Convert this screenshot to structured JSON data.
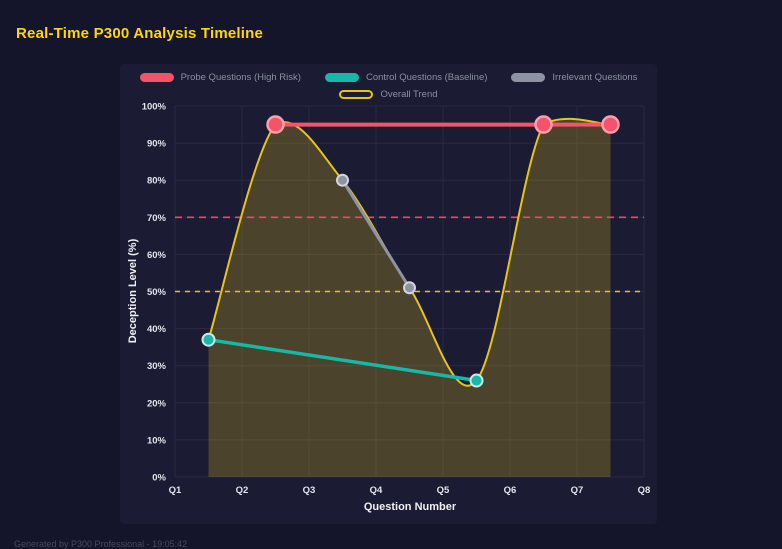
{
  "page": {
    "title": "Real-Time P300 Analysis Timeline",
    "footer": "Generated by P300 Professional - 19:05:42"
  },
  "chart_data": {
    "type": "line",
    "title": "Real-Time P300 Analysis Timeline",
    "xlabel": "Question Number",
    "ylabel": "Deception Level (%)",
    "xlim": [
      1,
      8
    ],
    "ylim": [
      0,
      100
    ],
    "x_tick_labels": [
      "Q1",
      "Q2",
      "Q3",
      "Q4",
      "Q5",
      "Q6",
      "Q7",
      "Q8"
    ],
    "y_tick_step": 10,
    "y_tick_suffix": "%",
    "grid": true,
    "legend_position": "top",
    "colors": {
      "background": "#14142a",
      "panel": "#1b1b33",
      "grid": "#2a2a45",
      "title": "#ffd60a",
      "axis_text": "#eef0f6",
      "legend_text": "#8b90a3",
      "area_fill": "#e7c41a",
      "area_opacity": 0.24
    },
    "series": [
      {
        "name": "Probe Questions (High Risk)",
        "color": "#f4536a",
        "point_ring": "#ff9fae",
        "x": [
          2.5,
          6.5,
          7.5
        ],
        "y": [
          95,
          95,
          95
        ],
        "shape": "line",
        "width": 4,
        "point_radius": 8,
        "point_stroke": 2.5,
        "legend_row": 1,
        "swatch": "fill"
      },
      {
        "name": "Control Questions (Baseline)",
        "color": "#16b8a8",
        "point_ring": "#c6ebe6",
        "x": [
          1.5,
          5.5
        ],
        "y": [
          37,
          26
        ],
        "shape": "line",
        "width": 3.5,
        "point_radius": 6,
        "point_stroke": 2,
        "legend_row": 1,
        "swatch": "fill"
      },
      {
        "name": "Irrelevant Questions",
        "color": "#8e93a3",
        "point_ring": "#d4d6de",
        "x": [
          3.5,
          4.5
        ],
        "y": [
          80,
          51
        ],
        "shape": "line",
        "width": 3,
        "point_radius": 5.5,
        "point_stroke": 2,
        "legend_row": 1,
        "swatch": "fill"
      },
      {
        "name": "Overall Trend",
        "color": "#e7c41a",
        "point_ring": "#e7c41a",
        "x": [
          1.5,
          2.5,
          3.5,
          4.5,
          5.5,
          6.5,
          7.5
        ],
        "y": [
          37,
          95,
          80,
          51,
          26,
          95,
          95
        ],
        "shape": "spline",
        "width": 2,
        "point_radius": 0,
        "point_stroke": 0,
        "legend_row": 2,
        "swatch": "outline",
        "area": true
      }
    ],
    "reference_lines": [
      {
        "y": 70,
        "color": "#ff3e6e",
        "dash": "7 5",
        "name": "probe-threshold-line"
      },
      {
        "y": 50,
        "color": "#e7c41a",
        "dash": "5 5",
        "name": "baseline-threshold-line"
      }
    ]
  }
}
